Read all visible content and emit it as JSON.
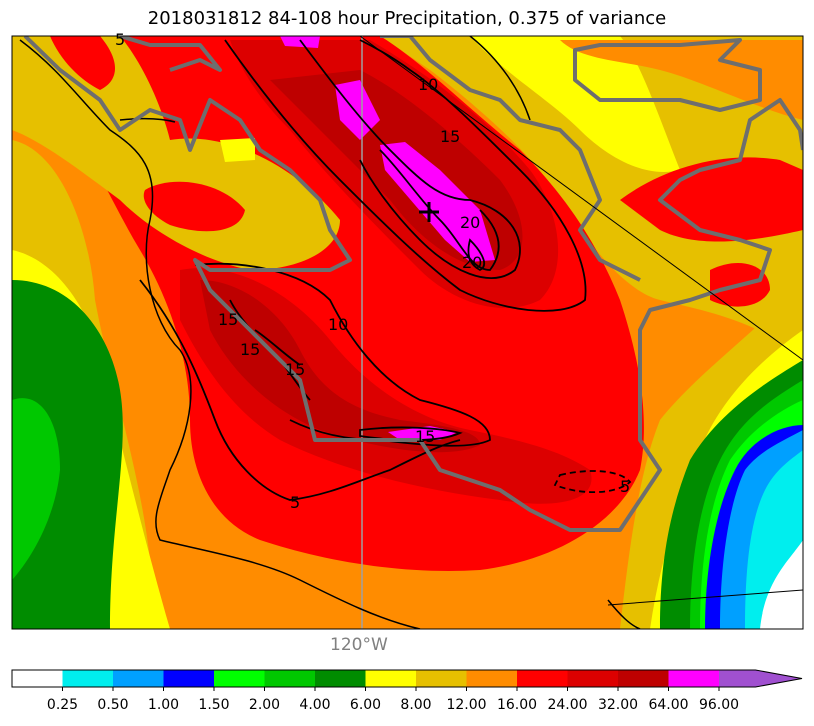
{
  "title": "2018031812 84-108 hour Precipitation, 0.375 of variance",
  "longitude_label": "120°W",
  "contour_labels": [
    "10",
    "15",
    "20",
    "20",
    "15",
    "15",
    "15",
    "10",
    "15",
    "5",
    "5",
    "5"
  ],
  "colorbar": {
    "ticks": [
      "0.25",
      "0.50",
      "1.00",
      "1.50",
      "2.00",
      "4.00",
      "6.00",
      "8.00",
      "12.00",
      "16.00",
      "24.00",
      "32.00",
      "64.00",
      "96.00"
    ],
    "colors": [
      "#ffffff",
      "#00eeee",
      "#00a0ff",
      "#0000ff",
      "#00ff00",
      "#00c800",
      "#008c00",
      "#ffff00",
      "#e6c000",
      "#ff8c00",
      "#ff0000",
      "#dc0000",
      "#be0000",
      "#ff00ff",
      "#a050d0"
    ],
    "extend": "max"
  },
  "center_marker": "+"
}
